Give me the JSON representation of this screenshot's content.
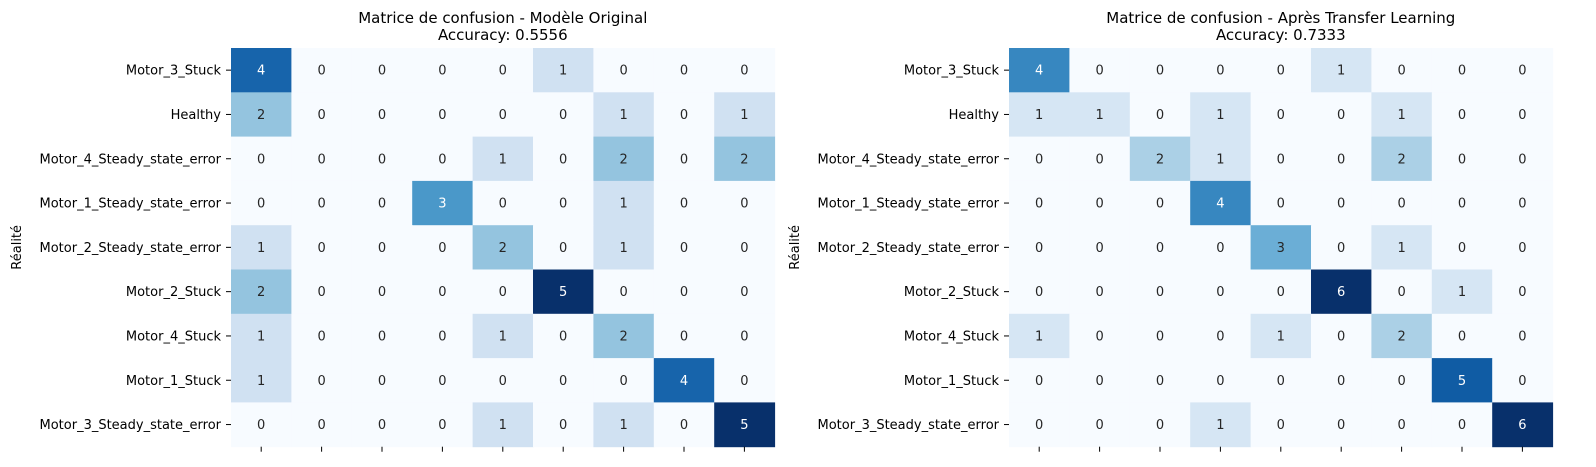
{
  "chart_data": [
    {
      "type": "heatmap",
      "title": "Matrice de confusion - Modèle Original",
      "subtitle": "Accuracy: 0.5556",
      "ylabel": "Réalité",
      "xlabel": "",
      "row_labels": [
        "Motor_3_Stuck",
        "Healthy",
        "Motor_4_Steady_state_error",
        "Motor_1_Steady_state_error",
        "Motor_2_Steady_state_error",
        "Motor_2_Stuck",
        "Motor_4_Stuck",
        "Motor_1_Stuck",
        "Motor_3_Steady_state_error"
      ],
      "matrix": [
        [
          4,
          0,
          0,
          0,
          0,
          1,
          0,
          0,
          0
        ],
        [
          2,
          0,
          0,
          0,
          0,
          0,
          1,
          0,
          1
        ],
        [
          0,
          0,
          0,
          0,
          1,
          0,
          2,
          0,
          2
        ],
        [
          0,
          0,
          0,
          3,
          0,
          0,
          1,
          0,
          0
        ],
        [
          1,
          0,
          0,
          0,
          2,
          0,
          1,
          0,
          0
        ],
        [
          2,
          0,
          0,
          0,
          0,
          5,
          0,
          0,
          0
        ],
        [
          1,
          0,
          0,
          0,
          1,
          0,
          2,
          0,
          0
        ],
        [
          1,
          0,
          0,
          0,
          0,
          0,
          0,
          4,
          0
        ],
        [
          0,
          0,
          0,
          0,
          1,
          0,
          1,
          0,
          5
        ]
      ],
      "colormap": "Blues",
      "color_range": [
        0,
        5
      ],
      "colorbar": false
    },
    {
      "type": "heatmap",
      "title": "Matrice de confusion - Après Transfer Learning",
      "subtitle": "Accuracy: 0.7333",
      "ylabel": "Réalité",
      "xlabel": "",
      "row_labels": [
        "Motor_3_Stuck",
        "Healthy",
        "Motor_4_Steady_state_error",
        "Motor_1_Steady_state_error",
        "Motor_2_Steady_state_error",
        "Motor_2_Stuck",
        "Motor_4_Stuck",
        "Motor_1_Stuck",
        "Motor_3_Steady_state_error"
      ],
      "matrix": [
        [
          4,
          0,
          0,
          0,
          0,
          1,
          0,
          0,
          0
        ],
        [
          1,
          1,
          0,
          1,
          0,
          0,
          1,
          0,
          0
        ],
        [
          0,
          0,
          2,
          1,
          0,
          0,
          2,
          0,
          0
        ],
        [
          0,
          0,
          0,
          4,
          0,
          0,
          0,
          0,
          0
        ],
        [
          0,
          0,
          0,
          0,
          3,
          0,
          1,
          0,
          0
        ],
        [
          0,
          0,
          0,
          0,
          0,
          6,
          0,
          1,
          0
        ],
        [
          1,
          0,
          0,
          0,
          1,
          0,
          2,
          0,
          0
        ],
        [
          0,
          0,
          0,
          0,
          0,
          0,
          0,
          5,
          0
        ],
        [
          0,
          0,
          0,
          1,
          0,
          0,
          0,
          0,
          6
        ]
      ],
      "colormap": "Blues",
      "color_range": [
        0,
        6
      ],
      "colorbar": false
    }
  ]
}
